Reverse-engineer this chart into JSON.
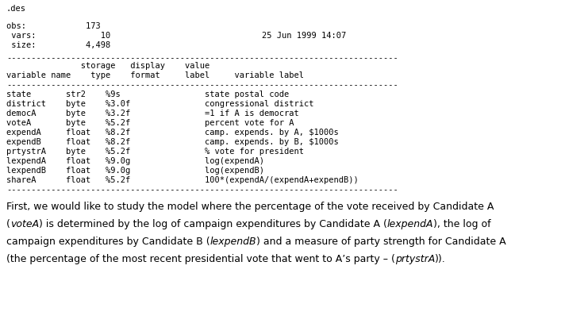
{
  "title": ".des",
  "obs_line": "obs:            173",
  "vars_line": " vars:             10",
  "size_line": " size:          4,498",
  "date_line": "25 Jun 1999 14:07",
  "sep": "-------------------------------------------------------------------------------",
  "col_hdr1": "               storage   display    value",
  "col_hdr2": "variable name    type    format     label     variable label",
  "variables": [
    [
      "state",
      "str2",
      "%9s",
      "",
      "state postal code"
    ],
    [
      "district",
      "byte",
      "%3.0f",
      "",
      "congressional district"
    ],
    [
      "democA",
      "byte",
      "%3.2f",
      "",
      "=1 if A is democrat"
    ],
    [
      "voteA",
      "byte",
      "%5.2f",
      "",
      "percent vote for A"
    ],
    [
      "expendA",
      "float",
      "%8.2f",
      "",
      "camp. expends. by A, $1000s"
    ],
    [
      "expendB",
      "float",
      "%8.2f",
      "",
      "camp. expends. by B, $1000s"
    ],
    [
      "prtystrA",
      "byte",
      "%5.2f",
      "",
      "% vote for president"
    ],
    [
      "lexpendA",
      "float",
      "%9.0g",
      "",
      "log(expendA)"
    ],
    [
      "lexpendB",
      "float",
      "%9.0g",
      "",
      "log(expendB)"
    ],
    [
      "shareA",
      "float",
      "%5.2f",
      "",
      "100*(expendA/(expendA+expendB))"
    ]
  ],
  "para_lines": [
    [
      [
        "First, we would like to study the model where the percentage of the vote received by Candidate A",
        false
      ]
    ],
    [
      [
        "(",
        false
      ],
      [
        "voteA",
        true
      ],
      [
        ") is determined by the log of campaign expenditures by Candidate A (",
        false
      ],
      [
        "lexpendA",
        true
      ],
      [
        "), the log of",
        false
      ]
    ],
    [
      [
        "campaign expenditures by Candidate B (",
        false
      ],
      [
        "lexpendB",
        true
      ],
      [
        ") and a measure of party strength for Candidate A",
        false
      ]
    ],
    [
      [
        "(the percentage of the most recent presidential vote that went to A’s party – (",
        false
      ],
      [
        "prtystrA",
        true
      ],
      [
        ")).",
        false
      ]
    ]
  ],
  "bg_color": "#ffffff",
  "text_color": "#000000",
  "mono_font": "DejaVu Sans Mono",
  "prop_font": "DejaVu Sans",
  "fs_mono": 7.5,
  "fs_prop": 9.0
}
